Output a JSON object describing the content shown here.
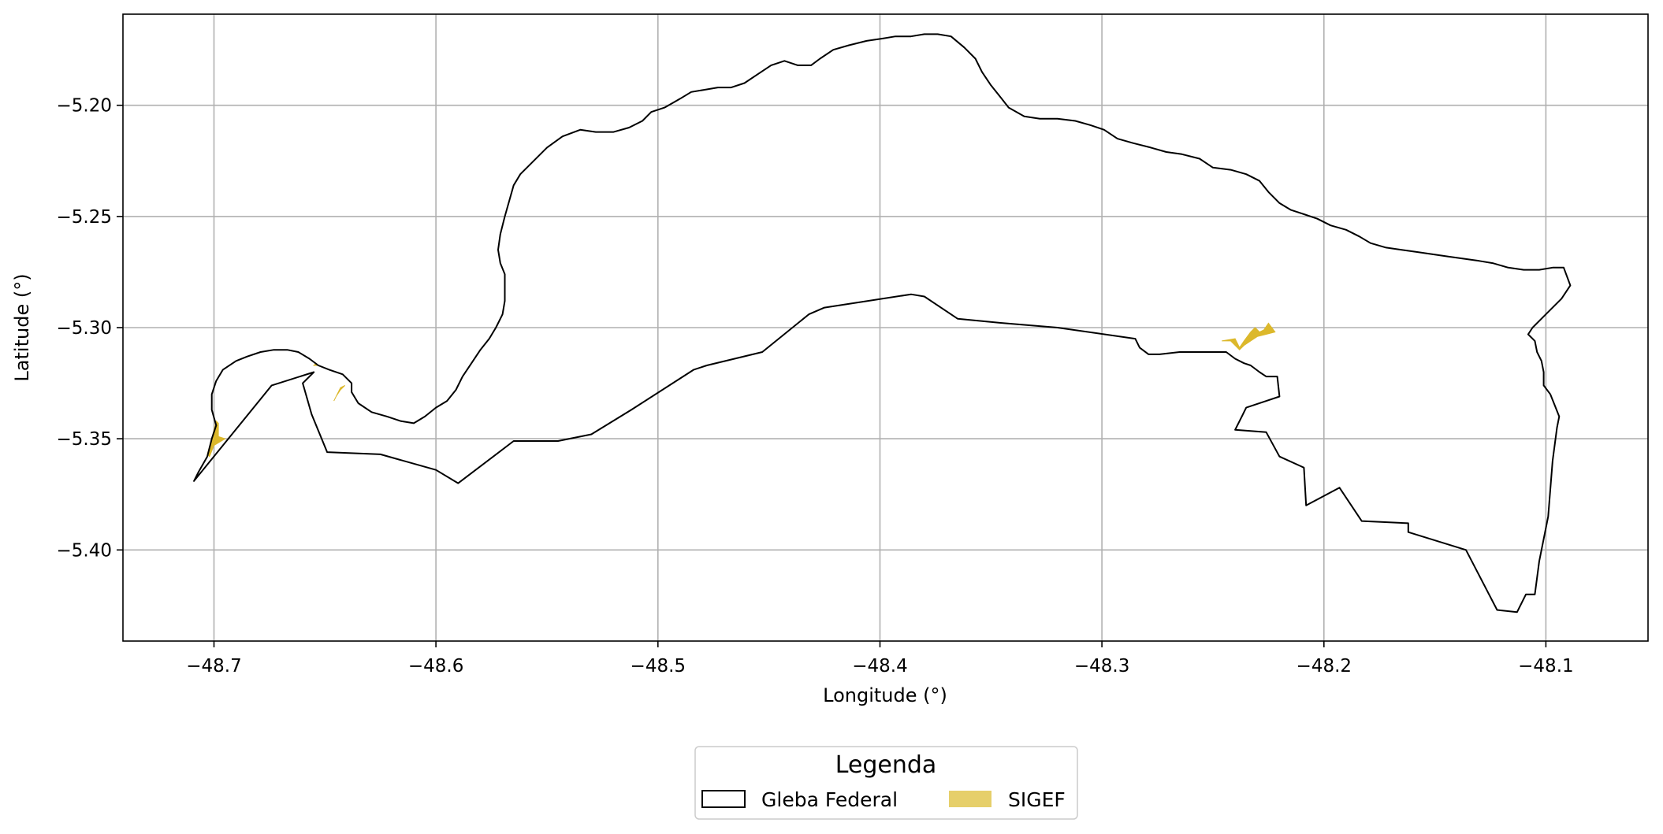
{
  "chart_data": {
    "type": "map",
    "xlabel": "Longitude (°)",
    "ylabel": "Latitude (°)",
    "xlim": [
      -48.741,
      -48.054
    ],
    "ylim": [
      -5.441,
      -5.159
    ],
    "x_ticks": [
      -48.7,
      -48.6,
      -48.5,
      -48.4,
      -48.3,
      -48.2,
      -48.1
    ],
    "x_tick_labels": [
      "−48.7",
      "−48.6",
      "−48.5",
      "−48.4",
      "−48.3",
      "−48.2",
      "−48.1"
    ],
    "y_ticks": [
      -5.2,
      -5.25,
      -5.3,
      -5.35,
      -5.4
    ],
    "y_tick_labels": [
      "−5.20",
      "−5.25",
      "−5.30",
      "−5.35",
      "−5.40"
    ],
    "grid": true,
    "legend": {
      "title": "Legenda",
      "placement": "bottom-center",
      "entries": [
        {
          "label": "Gleba Federal",
          "style": "outline",
          "color": "#000000"
        },
        {
          "label": "SIGEF",
          "style": "fill",
          "color": "#e6cf6a"
        }
      ]
    },
    "series": [
      {
        "name": "Gleba Federal",
        "type": "polygon",
        "stroke": "#000000",
        "fill": "none",
        "points": [
          [
            -48.709,
            -5.369
          ],
          [
            -48.707,
            -5.365
          ],
          [
            -48.703,
            -5.358
          ],
          [
            -48.701,
            -5.35
          ],
          [
            -48.699,
            -5.344
          ],
          [
            -48.701,
            -5.337
          ],
          [
            -48.701,
            -5.33
          ],
          [
            -48.699,
            -5.324
          ],
          [
            -48.696,
            -5.319
          ],
          [
            -48.69,
            -5.315
          ],
          [
            -48.685,
            -5.313
          ],
          [
            -48.679,
            -5.311
          ],
          [
            -48.673,
            -5.31
          ],
          [
            -48.667,
            -5.31
          ],
          [
            -48.662,
            -5.311
          ],
          [
            -48.657,
            -5.314
          ],
          [
            -48.653,
            -5.317
          ],
          [
            -48.648,
            -5.319
          ],
          [
            -48.642,
            -5.321
          ],
          [
            -48.638,
            -5.325
          ],
          [
            -48.638,
            -5.329
          ],
          [
            -48.635,
            -5.334
          ],
          [
            -48.629,
            -5.338
          ],
          [
            -48.622,
            -5.34
          ],
          [
            -48.616,
            -5.342
          ],
          [
            -48.61,
            -5.343
          ],
          [
            -48.605,
            -5.34
          ],
          [
            -48.6,
            -5.336
          ],
          [
            -48.595,
            -5.333
          ],
          [
            -48.591,
            -5.328
          ],
          [
            -48.588,
            -5.322
          ],
          [
            -48.584,
            -5.316
          ],
          [
            -48.58,
            -5.31
          ],
          [
            -48.576,
            -5.305
          ],
          [
            -48.573,
            -5.3
          ],
          [
            -48.57,
            -5.294
          ],
          [
            -48.569,
            -5.288
          ],
          [
            -48.569,
            -5.282
          ],
          [
            -48.569,
            -5.276
          ],
          [
            -48.571,
            -5.271
          ],
          [
            -48.572,
            -5.265
          ],
          [
            -48.571,
            -5.258
          ],
          [
            -48.569,
            -5.25
          ],
          [
            -48.567,
            -5.243
          ],
          [
            -48.565,
            -5.236
          ],
          [
            -48.562,
            -5.231
          ],
          [
            -48.556,
            -5.225
          ],
          [
            -48.55,
            -5.219
          ],
          [
            -48.543,
            -5.214
          ],
          [
            -48.535,
            -5.211
          ],
          [
            -48.528,
            -5.212
          ],
          [
            -48.52,
            -5.212
          ],
          [
            -48.513,
            -5.21
          ],
          [
            -48.507,
            -5.207
          ],
          [
            -48.503,
            -5.203
          ],
          [
            -48.497,
            -5.201
          ],
          [
            -48.49,
            -5.197
          ],
          [
            -48.485,
            -5.194
          ],
          [
            -48.479,
            -5.193
          ],
          [
            -48.473,
            -5.192
          ],
          [
            -48.467,
            -5.192
          ],
          [
            -48.461,
            -5.19
          ],
          [
            -48.455,
            -5.186
          ],
          [
            -48.449,
            -5.182
          ],
          [
            -48.443,
            -5.18
          ],
          [
            -48.437,
            -5.182
          ],
          [
            -48.431,
            -5.182
          ],
          [
            -48.427,
            -5.179
          ],
          [
            -48.421,
            -5.175
          ],
          [
            -48.414,
            -5.173
          ],
          [
            -48.406,
            -5.171
          ],
          [
            -48.399,
            -5.17
          ],
          [
            -48.393,
            -5.169
          ],
          [
            -48.386,
            -5.169
          ],
          [
            -48.38,
            -5.168
          ],
          [
            -48.374,
            -5.168
          ],
          [
            -48.368,
            -5.169
          ],
          [
            -48.362,
            -5.174
          ],
          [
            -48.357,
            -5.179
          ],
          [
            -48.354,
            -5.185
          ],
          [
            -48.35,
            -5.191
          ],
          [
            -48.346,
            -5.196
          ],
          [
            -48.342,
            -5.201
          ],
          [
            -48.335,
            -5.205
          ],
          [
            -48.328,
            -5.206
          ],
          [
            -48.32,
            -5.206
          ],
          [
            -48.312,
            -5.207
          ],
          [
            -48.305,
            -5.209
          ],
          [
            -48.299,
            -5.211
          ],
          [
            -48.293,
            -5.215
          ],
          [
            -48.286,
            -5.217
          ],
          [
            -48.278,
            -5.219
          ],
          [
            -48.271,
            -5.221
          ],
          [
            -48.264,
            -5.222
          ],
          [
            -48.256,
            -5.224
          ],
          [
            -48.25,
            -5.228
          ],
          [
            -48.242,
            -5.229
          ],
          [
            -48.235,
            -5.231
          ],
          [
            -48.229,
            -5.234
          ],
          [
            -48.225,
            -5.239
          ],
          [
            -48.22,
            -5.244
          ],
          [
            -48.215,
            -5.247
          ],
          [
            -48.209,
            -5.249
          ],
          [
            -48.203,
            -5.251
          ],
          [
            -48.197,
            -5.254
          ],
          [
            -48.19,
            -5.256
          ],
          [
            -48.184,
            -5.259
          ],
          [
            -48.179,
            -5.262
          ],
          [
            -48.172,
            -5.264
          ],
          [
            -48.165,
            -5.265
          ],
          [
            -48.158,
            -5.266
          ],
          [
            -48.151,
            -5.267
          ],
          [
            -48.144,
            -5.268
          ],
          [
            -48.137,
            -5.269
          ],
          [
            -48.13,
            -5.27
          ],
          [
            -48.124,
            -5.271
          ],
          [
            -48.117,
            -5.273
          ],
          [
            -48.11,
            -5.274
          ],
          [
            -48.103,
            -5.274
          ],
          [
            -48.097,
            -5.273
          ],
          [
            -48.092,
            -5.273
          ],
          [
            -48.089,
            -5.281
          ],
          [
            -48.093,
            -5.287
          ],
          [
            -48.1,
            -5.294
          ],
          [
            -48.106,
            -5.3
          ],
          [
            -48.108,
            -5.303
          ],
          [
            -48.105,
            -5.306
          ],
          [
            -48.104,
            -5.311
          ],
          [
            -48.102,
            -5.315
          ],
          [
            -48.101,
            -5.32
          ],
          [
            -48.101,
            -5.326
          ],
          [
            -48.098,
            -5.33
          ],
          [
            -48.096,
            -5.335
          ],
          [
            -48.094,
            -5.34
          ],
          [
            -48.095,
            -5.345
          ],
          [
            -48.097,
            -5.36
          ],
          [
            -48.099,
            -5.385
          ],
          [
            -48.103,
            -5.405
          ],
          [
            -48.105,
            -5.42
          ],
          [
            -48.109,
            -5.42
          ],
          [
            -48.113,
            -5.428
          ],
          [
            -48.122,
            -5.427
          ],
          [
            -48.136,
            -5.4
          ],
          [
            -48.162,
            -5.392
          ],
          [
            -48.162,
            -5.388
          ],
          [
            -48.183,
            -5.387
          ],
          [
            -48.193,
            -5.372
          ],
          [
            -48.208,
            -5.38
          ],
          [
            -48.209,
            -5.363
          ],
          [
            -48.22,
            -5.358
          ],
          [
            -48.226,
            -5.347
          ],
          [
            -48.24,
            -5.346
          ],
          [
            -48.237,
            -5.34
          ],
          [
            -48.235,
            -5.336
          ],
          [
            -48.22,
            -5.331
          ],
          [
            -48.221,
            -5.322
          ],
          [
            -48.226,
            -5.322
          ],
          [
            -48.229,
            -5.32
          ],
          [
            -48.233,
            -5.317
          ],
          [
            -48.236,
            -5.316
          ],
          [
            -48.24,
            -5.314
          ],
          [
            -48.244,
            -5.311
          ],
          [
            -48.256,
            -5.311
          ],
          [
            -48.265,
            -5.311
          ],
          [
            -48.274,
            -5.312
          ],
          [
            -48.279,
            -5.312
          ],
          [
            -48.283,
            -5.309
          ],
          [
            -48.285,
            -5.305
          ],
          [
            -48.32,
            -5.3
          ],
          [
            -48.344,
            -5.298
          ],
          [
            -48.365,
            -5.296
          ],
          [
            -48.38,
            -5.286
          ],
          [
            -48.386,
            -5.285
          ],
          [
            -48.425,
            -5.291
          ],
          [
            -48.432,
            -5.294
          ],
          [
            -48.453,
            -5.311
          ],
          [
            -48.478,
            -5.317
          ],
          [
            -48.484,
            -5.319
          ],
          [
            -48.512,
            -5.337
          ],
          [
            -48.53,
            -5.348
          ],
          [
            -48.545,
            -5.351
          ],
          [
            -48.565,
            -5.351
          ],
          [
            -48.59,
            -5.37
          ],
          [
            -48.6,
            -5.364
          ],
          [
            -48.625,
            -5.357
          ],
          [
            -48.649,
            -5.356
          ],
          [
            -48.656,
            -5.339
          ],
          [
            -48.66,
            -5.325
          ],
          [
            -48.655,
            -5.32
          ],
          [
            -48.674,
            -5.326
          ]
        ]
      },
      {
        "name": "SIGEF",
        "type": "polygons",
        "fill": "#dcb82b",
        "polygons": [
          [
            [
              -48.703,
              -5.357
            ],
            [
              -48.701,
              -5.35
            ],
            [
              -48.699,
              -5.342
            ],
            [
              -48.698,
              -5.343
            ],
            [
              -48.698,
              -5.349
            ],
            [
              -48.695,
              -5.35
            ],
            [
              -48.7,
              -5.353
            ],
            [
              -48.702,
              -5.358
            ]
          ],
          [
            [
              -48.645,
              -5.331
            ],
            [
              -48.643,
              -5.328
            ],
            [
              -48.641,
              -5.326
            ],
            [
              -48.643,
              -5.327
            ],
            [
              -48.646,
              -5.333
            ]
          ],
          [
            [
              -48.654,
              -5.316
            ],
            [
              -48.653,
              -5.317
            ],
            [
              -48.655,
              -5.317
            ]
          ],
          [
            [
              -48.246,
              -5.306
            ],
            [
              -48.24,
              -5.305
            ],
            [
              -48.238,
              -5.309
            ],
            [
              -48.236,
              -5.306
            ],
            [
              -48.233,
              -5.302
            ],
            [
              -48.231,
              -5.3
            ],
            [
              -48.229,
              -5.302
            ],
            [
              -48.227,
              -5.301
            ],
            [
              -48.225,
              -5.298
            ],
            [
              -48.222,
              -5.302
            ],
            [
              -48.226,
              -5.303
            ],
            [
              -48.23,
              -5.304
            ],
            [
              -48.233,
              -5.306
            ],
            [
              -48.236,
              -5.308
            ],
            [
              -48.238,
              -5.31
            ],
            [
              -48.242,
              -5.306
            ]
          ]
        ]
      }
    ]
  }
}
